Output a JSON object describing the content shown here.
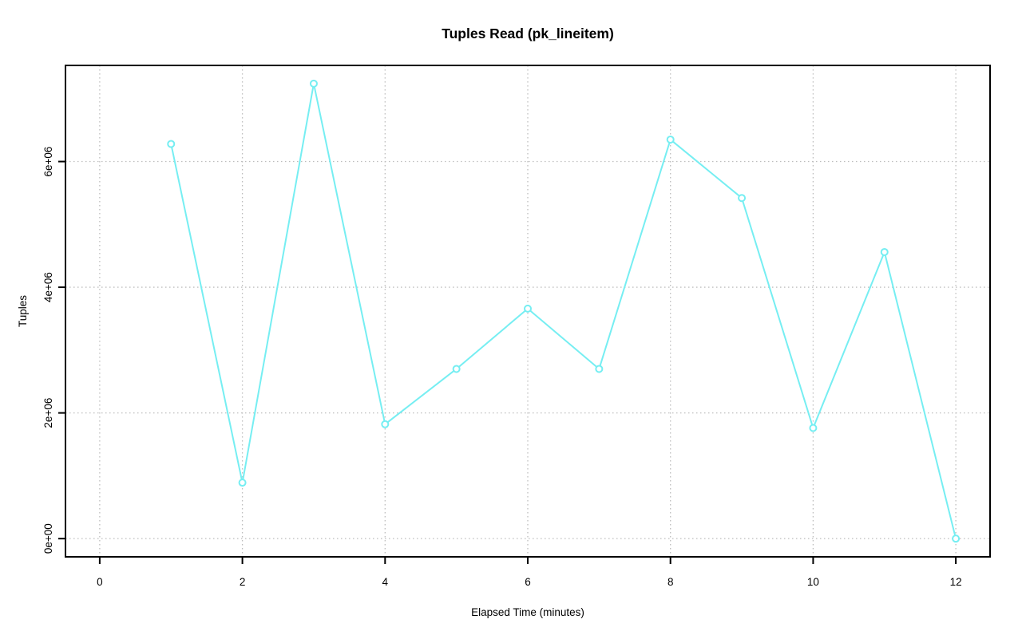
{
  "page": {
    "background": "#ffffff"
  },
  "chart_data": {
    "type": "line",
    "title": "Tuples Read (pk_lineitem)",
    "xlabel": "Elapsed Time (minutes)",
    "ylabel": "Tuples",
    "x": [
      1,
      2,
      3,
      4,
      5,
      6,
      7,
      8,
      9,
      10,
      11,
      12
    ],
    "values": [
      6280000,
      890000,
      7240000,
      1820000,
      2700000,
      3660000,
      2700000,
      6350000,
      5420000,
      1760000,
      4560000,
      0
    ],
    "x_ticks": [
      0,
      2,
      4,
      6,
      8,
      10,
      12
    ],
    "x_tick_labels": [
      "0",
      "2",
      "4",
      "6",
      "8",
      "10",
      "12"
    ],
    "y_ticks": [
      0,
      2000000,
      4000000,
      6000000
    ],
    "y_tick_labels": [
      "0e+00",
      "2e+06",
      "4e+06",
      "6e+06"
    ],
    "xlim": [
      -0.48,
      12.48
    ],
    "ylim": [
      -290000,
      7530000
    ],
    "grid": true,
    "legend": "none",
    "marker": "open-circle",
    "line_color": "#76eef2",
    "grid_color": "#bdbdbd",
    "axis_color": "#000000"
  }
}
